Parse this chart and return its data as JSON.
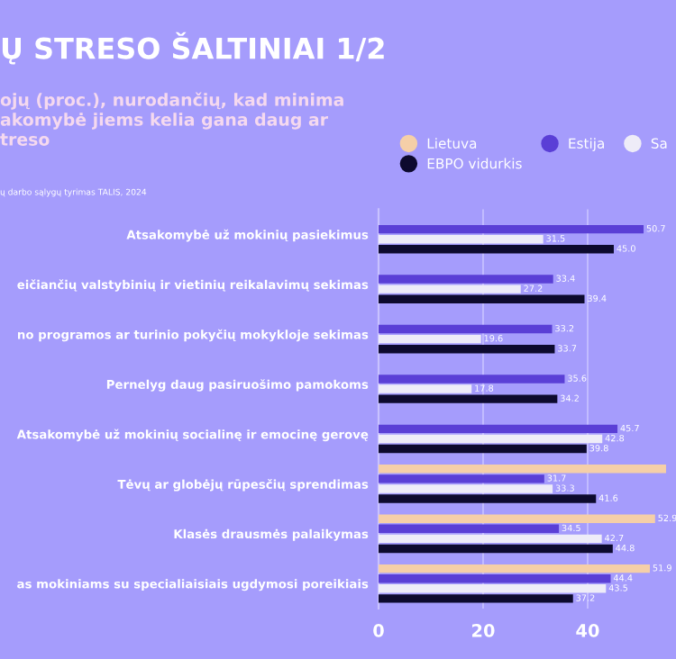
{
  "chart_data": {
    "type": "bar",
    "orientation": "horizontal",
    "title": "Ų STRESO ŠALTINIAI 1/2",
    "subtitle": "ojų (proc.), nurodančių, kad minima\nakomybė jiems kelia gana daug ar\ntreso",
    "annotations": [
      "ų darbo sąlygų tyrimas TALIS, 2024"
    ],
    "categories": [
      "Atsakomybė už mokinių pasiekimus",
      "eičiančių valstybinių ir vietinių reikalavimų sekimas",
      "no programos ar turinio pokyčių mokykloje sekimas",
      "Pernelyg daug pasiruošimo pamokoms",
      "Atsakomybė už mokinių socialinę ir emocinę gerovę",
      "Tėvų ar globėjų rūpesčių sprendimas",
      "Klasės drausmės palaikymas",
      "as mokiniams su specialiaisiais ugdymosi poreikiais"
    ],
    "series": [
      {
        "name": "Lietuva",
        "color": "#f5cfa8",
        "values": [
          null,
          null,
          null,
          null,
          null,
          55,
          52.9,
          51.9
        ],
        "value_labels": [
          null,
          null,
          null,
          null,
          null,
          null,
          "52.9",
          "51.9"
        ]
      },
      {
        "name": "Estija",
        "color": "#5a3fd6",
        "values": [
          50.7,
          33.4,
          33.2,
          35.6,
          45.7,
          31.7,
          34.5,
          44.4
        ],
        "value_labels": [
          "50.7",
          "33.4",
          "33.2",
          "35.6",
          "45.7",
          "31.7",
          "34.5",
          "44.4"
        ]
      },
      {
        "name": "Sa",
        "color": "#eeecf8",
        "values": [
          31.5,
          27.2,
          19.6,
          17.8,
          42.8,
          33.3,
          42.7,
          43.5
        ],
        "value_labels": [
          "31.5",
          "27.2",
          "19.6",
          "17.8",
          "42.8",
          "33.3",
          "42.7",
          "43.5"
        ]
      },
      {
        "name": "EBPO vidurkis",
        "color": "#0d0a2e",
        "values": [
          45.0,
          39.4,
          33.7,
          34.2,
          39.8,
          41.6,
          44.8,
          37.2
        ],
        "value_labels": [
          "45.0",
          "39.4",
          "33.7",
          "34.2",
          "39.8",
          "41.6",
          "44.8",
          "37.2"
        ]
      }
    ],
    "xlim": [
      0,
      56.9
    ],
    "xticks": [
      0,
      20,
      40
    ],
    "grid": "x",
    "legend": "top right"
  }
}
